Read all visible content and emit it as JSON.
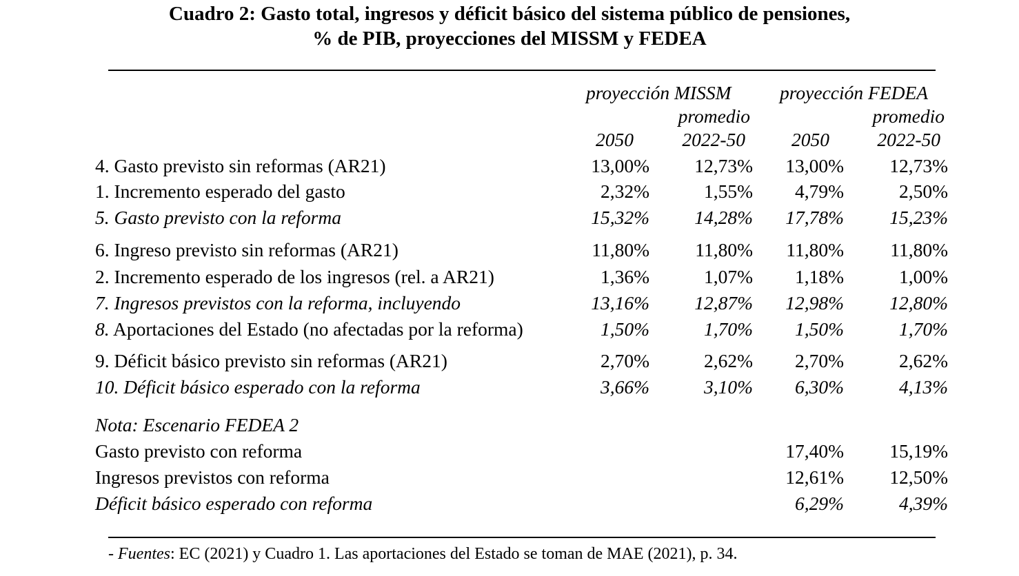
{
  "title": {
    "line1": "Cuadro 2: Gasto total, ingresos y déficit básico del sistema público de pensiones,",
    "line2": "% de PIB, proyecciones del MISSM y FEDEA"
  },
  "header": {
    "group_missm": "proyección MISSM",
    "group_fedea": "proyección FEDEA",
    "promedio": "promedio",
    "year_2050": "2050",
    "range": "2022-50"
  },
  "rows": [
    {
      "label": "4. Gasto previsto sin reformas (AR21)",
      "v": [
        "13,00%",
        "12,73%",
        "13,00%",
        "12,73%"
      ]
    },
    {
      "label": "1. Incremento esperado del gasto",
      "v": [
        "2,32%",
        "1,55%",
        "4,79%",
        "2,50%"
      ]
    },
    {
      "label": "5. Gasto previsto con la reforma",
      "v": [
        "15,32%",
        "14,28%",
        "17,78%",
        "15,23%"
      ]
    },
    {
      "label": "6. Ingreso previsto sin reformas (AR21)",
      "v": [
        "11,80%",
        "11,80%",
        "11,80%",
        "11,80%"
      ]
    },
    {
      "label": "2. Incremento esperado de los ingresos (rel. a AR21)",
      "v": [
        "1,36%",
        "1,07%",
        "1,18%",
        "1,00%"
      ]
    },
    {
      "label": "7. Ingresos previstos con la reforma, incluyendo",
      "v": [
        "13,16%",
        "12,87%",
        "12,98%",
        "12,80%"
      ]
    },
    {
      "label_prefix": "8.",
      "label_rest": "Aportaciones del Estado (no afectadas por la reforma)",
      "v": [
        "1,50%",
        "1,70%",
        "1,50%",
        "1,70%"
      ]
    },
    {
      "label": "9. Déficit básico previsto sin reformas (AR21)",
      "v": [
        "2,70%",
        "2,62%",
        "2,70%",
        "2,62%"
      ]
    },
    {
      "label": "10. Déficit básico esperado con la reforma",
      "v": [
        "3,66%",
        "3,10%",
        "6,30%",
        "4,13%"
      ]
    }
  ],
  "note": {
    "title": "Nota: Escenario FEDEA 2",
    "rows": [
      {
        "label": "Gasto previsto con reforma",
        "v": [
          "17,40%",
          "15,19%"
        ]
      },
      {
        "label": "Ingresos previstos con reforma",
        "v": [
          "12,61%",
          "12,50%"
        ]
      },
      {
        "label": "Déficit básico esperado con reforma",
        "v": [
          "6,29%",
          "4,39%"
        ]
      }
    ]
  },
  "footer": {
    "prefix": "- ",
    "fuentes": "Fuentes",
    "text": ": EC (2021) y Cuadro 1. Las aportaciones del Estado se toman de MAE (2021), p. 34."
  }
}
